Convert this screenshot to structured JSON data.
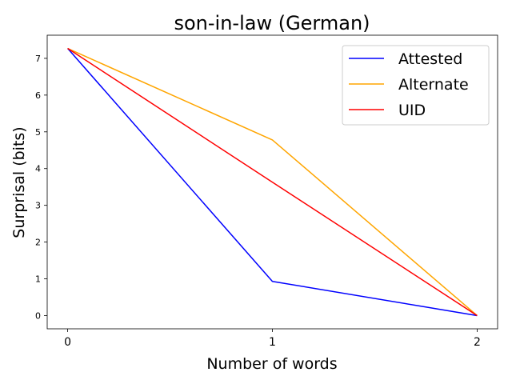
{
  "chart_data": {
    "type": "line",
    "title": "son-in-law (German)",
    "xlabel": "Number of words",
    "ylabel": "Surprisal (bits)",
    "x": [
      0,
      1,
      2
    ],
    "x_ticks": [
      "0",
      "1",
      "2"
    ],
    "y_ticks": [
      "0",
      "1",
      "2",
      "3",
      "4",
      "5",
      "6",
      "7"
    ],
    "xlim": [
      -0.1,
      2.1
    ],
    "ylim": [
      -0.36,
      7.63
    ],
    "grid": false,
    "legend_position": "top-right",
    "series": [
      {
        "name": "Attested",
        "color": "#0000ff",
        "values": [
          7.27,
          0.93,
          0.0
        ]
      },
      {
        "name": "Alternate",
        "color": "#ffa500",
        "values": [
          7.27,
          4.78,
          0.0
        ]
      },
      {
        "name": "UID",
        "color": "#ff0000",
        "values": [
          7.27,
          3.63,
          0.0
        ]
      }
    ]
  }
}
